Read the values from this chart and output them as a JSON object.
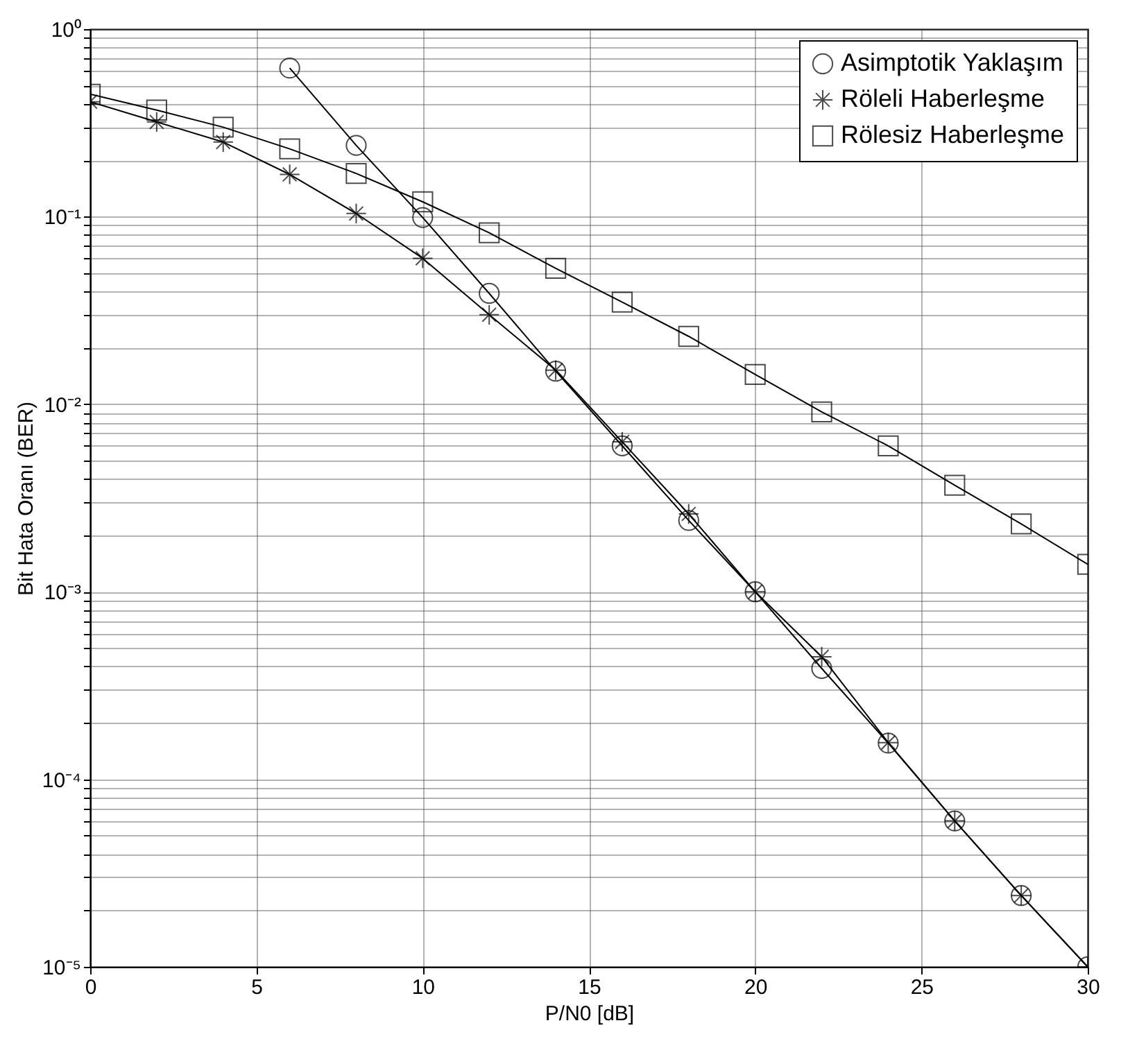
{
  "chart_data": {
    "type": "line",
    "xlabel": "P/N0 [dB]",
    "ylabel": "Bit Hata Oranı (BER)",
    "log": "y",
    "grid": true,
    "legend": "top right",
    "line_style": "solid",
    "xlim": [
      0,
      30
    ],
    "xticks": [
      0,
      5,
      10,
      15,
      20,
      25,
      30
    ],
    "ylim": [
      1e-05,
      1
    ],
    "yticks": [
      {
        "value": 1e-05,
        "label": "10⁻⁵"
      },
      {
        "value": 2e-05,
        "label": null
      },
      {
        "value": 3e-05,
        "label": null
      },
      {
        "value": 4e-05,
        "label": null
      },
      {
        "value": 5e-05,
        "label": null
      },
      {
        "value": 6e-05,
        "label": null
      },
      {
        "value": 7e-05,
        "label": null
      },
      {
        "value": 8e-05,
        "label": null
      },
      {
        "value": 9e-05,
        "label": null
      },
      {
        "value": 0.0001,
        "label": "10⁻⁴"
      },
      {
        "value": 0.0002,
        "label": null
      },
      {
        "value": 0.0003,
        "label": null
      },
      {
        "value": 0.0004,
        "label": null
      },
      {
        "value": 0.0005,
        "label": null
      },
      {
        "value": 0.0006,
        "label": null
      },
      {
        "value": 0.0007,
        "label": null
      },
      {
        "value": 0.0008,
        "label": null
      },
      {
        "value": 0.0009,
        "label": null
      },
      {
        "value": 0.001,
        "label": "10⁻³"
      },
      {
        "value": 0.002,
        "label": null
      },
      {
        "value": 0.003,
        "label": null
      },
      {
        "value": 0.004,
        "label": null
      },
      {
        "value": 0.005,
        "label": null
      },
      {
        "value": 0.006,
        "label": null
      },
      {
        "value": 0.007,
        "label": null
      },
      {
        "value": 0.008,
        "label": null
      },
      {
        "value": 0.009,
        "label": null
      },
      {
        "value": 0.01,
        "label": "10⁻²"
      },
      {
        "value": 0.02,
        "label": null
      },
      {
        "value": 0.03,
        "label": null
      },
      {
        "value": 0.04,
        "label": null
      },
      {
        "value": 0.05,
        "label": null
      },
      {
        "value": 0.06,
        "label": null
      },
      {
        "value": 0.07,
        "label": null
      },
      {
        "value": 0.08,
        "label": null
      },
      {
        "value": 0.09,
        "label": null
      },
      {
        "value": 0.1,
        "label": "10⁻¹"
      },
      {
        "value": 0.2,
        "label": null
      },
      {
        "value": 0.3,
        "label": null
      },
      {
        "value": 0.4,
        "label": null
      },
      {
        "value": 0.5,
        "label": null
      },
      {
        "value": 0.6,
        "label": null
      },
      {
        "value": 0.7,
        "label": null
      },
      {
        "value": 0.8,
        "label": null
      },
      {
        "value": 0.9,
        "label": null
      },
      {
        "value": 1,
        "label": "10⁰"
      }
    ],
    "series": [
      {
        "name": "Asimptotik Yaklaşım",
        "color": "#000000",
        "marker": "circle",
        "x": [
          6,
          8,
          10,
          12,
          14,
          16,
          18,
          20,
          22,
          24,
          26,
          28,
          30
        ],
        "values": [
          0.62,
          0.24,
          0.099,
          0.039,
          0.015,
          0.006,
          0.0024,
          0.001,
          0.00039,
          0.000156,
          6e-05,
          2.4e-05,
          1e-05
        ]
      },
      {
        "name": "Röleli Haberleşme",
        "color": "#000000",
        "marker": "cross",
        "x": [
          0,
          2,
          4,
          6,
          8,
          10,
          12,
          14,
          16,
          18,
          20,
          22,
          24,
          26,
          28,
          30
        ],
        "values": [
          0.41,
          0.32,
          0.25,
          0.168,
          0.104,
          0.06,
          0.03,
          0.0152,
          0.0063,
          0.0026,
          0.001,
          0.00045,
          0.000157,
          6e-05,
          2.4e-05,
          1e-05
        ]
      },
      {
        "name": "Rölesiz Haberleşme",
        "color": "#000000",
        "marker": "square",
        "x": [
          0,
          2,
          4,
          6,
          8,
          10,
          12,
          14,
          16,
          18,
          20,
          22,
          24,
          26,
          28,
          30
        ],
        "values": [
          0.45,
          0.37,
          0.3,
          0.23,
          0.17,
          0.12,
          0.082,
          0.053,
          0.035,
          0.023,
          0.0144,
          0.0091,
          0.006,
          0.0037,
          0.0023,
          0.0014
        ]
      }
    ]
  }
}
